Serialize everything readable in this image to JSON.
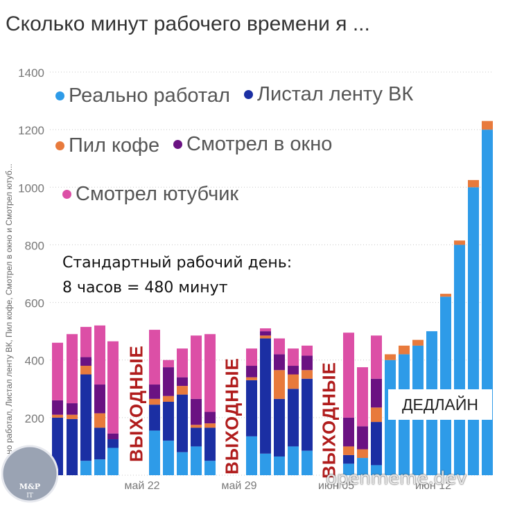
{
  "title": "Сколько минут рабочего времени я ...",
  "annotation": [
    "Стандартный рабочий день:",
    "8 часов = 480 минут"
  ],
  "weekend_label": "ВЫХОДНЫЕ",
  "deadline_label": "ДЕДЛАЙН",
  "watermark": "openmeme.dev",
  "logo_text": [
    "M&P",
    "IT"
  ],
  "chart_data": {
    "type": "bar",
    "stacked": true,
    "title": "Сколько минут рабочего времени я ...",
    "ylabel": "Реально работал, Листал ленту ВК, Пил кофе, Смотрел в окно и Смотрел ютуб...",
    "ylim": [
      0,
      1400
    ],
    "yticks": [
      0,
      200,
      400,
      600,
      800,
      1000,
      1200,
      1400
    ],
    "xtick_labels": [
      "май 22",
      "май 29",
      "июн 05",
      "июн 12"
    ],
    "grid": true,
    "legend_placement": "top-left",
    "colors": {
      "Реально работал": "#2e9be8",
      "Листал ленту ВК": "#1b2fa3",
      "Пил кофе": "#e87a3c",
      "Смотрел в окно": "#6a1282",
      "Смотрел ютубчик": "#dc4fa6"
    },
    "series": [
      {
        "name": "Реально работал",
        "values": [
          0,
          0,
          50,
          55,
          95,
          155,
          120,
          80,
          100,
          50,
          135,
          75,
          65,
          100,
          85,
          40,
          60,
          35,
          400,
          420,
          450,
          500,
          620,
          800,
          1000,
          1200
        ]
      },
      {
        "name": "Листал ленту ВК",
        "values": [
          200,
          195,
          300,
          110,
          30,
          90,
          135,
          200,
          65,
          115,
          195,
          400,
          200,
          200,
          250,
          30,
          0,
          150,
          0,
          0,
          0,
          0,
          0,
          0,
          0,
          0
        ]
      },
      {
        "name": "Пил кофе",
        "values": [
          10,
          15,
          30,
          50,
          0,
          20,
          20,
          30,
          10,
          15,
          10,
          10,
          100,
          50,
          30,
          30,
          30,
          50,
          20,
          30,
          20,
          0,
          10,
          15,
          25,
          30
        ]
      },
      {
        "name": "Смотрел в окно",
        "values": [
          50,
          40,
          30,
          100,
          20,
          50,
          100,
          30,
          90,
          40,
          40,
          15,
          55,
          30,
          50,
          100,
          80,
          100,
          0,
          0,
          0,
          0,
          0,
          0,
          0,
          0
        ]
      },
      {
        "name": "Смотрел ютубчик",
        "values": [
          200,
          240,
          105,
          205,
          320,
          190,
          25,
          100,
          220,
          270,
          60,
          10,
          55,
          60,
          35,
          295,
          205,
          150,
          0,
          0,
          0,
          0,
          0,
          0,
          0,
          0
        ]
      }
    ]
  }
}
